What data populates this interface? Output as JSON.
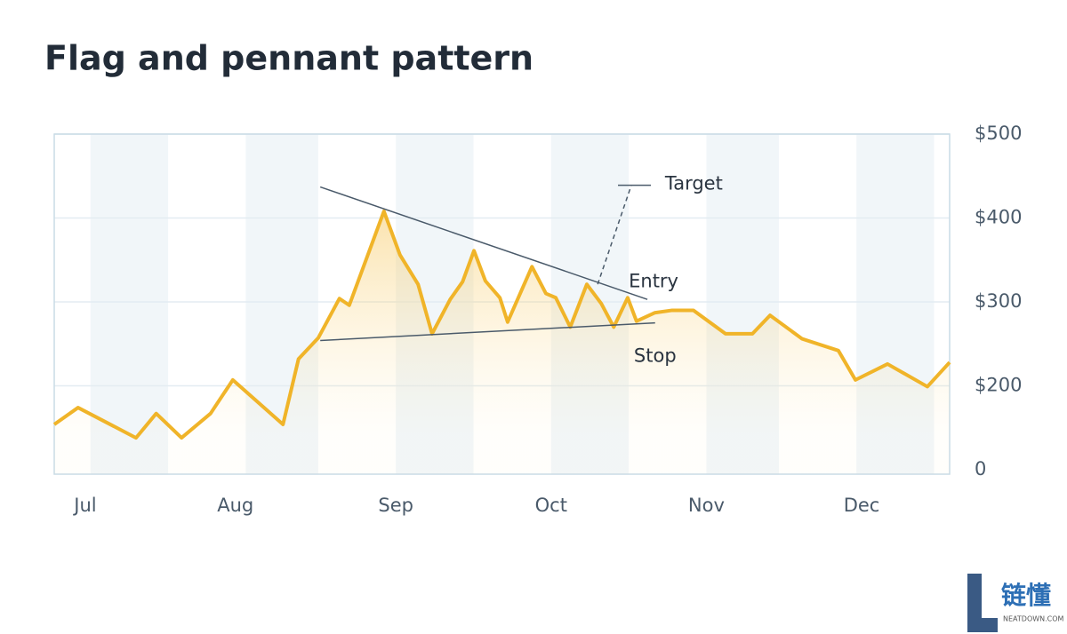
{
  "chart_data": {
    "type": "line",
    "title": "Flag and pennant pattern",
    "x": [
      0,
      4.6,
      15.8,
      19.7,
      24.6,
      30.2,
      34.5,
      44.2,
      47.2,
      51,
      55.1,
      57,
      63.7,
      66.8,
      70.3,
      73,
      76.5,
      78.9,
      81.1,
      83.3,
      86.1,
      87.6,
      92.3,
      95,
      96.9,
      99.7,
      102.9,
      105.7,
      108.1,
      110.8,
      112.5,
      116,
      119.4,
      123.5,
      129.7,
      134.9,
      138.3,
      144.5,
      151.5,
      154.8,
      161,
      168.7,
      173
    ],
    "series": [
      {
        "color": "#f0b429",
        "values": [
          154,
          174,
          138,
          167,
          138,
          167,
          207,
          154,
          232,
          257,
          304,
          296,
          408,
          356,
          321,
          262,
          303,
          324,
          361,
          325,
          305,
          276,
          342,
          310,
          305,
          270,
          321,
          298,
          270,
          305,
          277,
          287,
          290,
          290,
          262,
          262,
          284,
          256,
          242,
          207,
          226,
          199,
          228
        ]
      }
    ],
    "xlim": [
      0,
      173
    ],
    "xticks": [
      {
        "value": 6,
        "label": "Jul"
      },
      {
        "value": 35,
        "label": "Aug"
      },
      {
        "value": 66,
        "label": "Sep"
      },
      {
        "value": 96,
        "label": "Oct"
      },
      {
        "value": 126,
        "label": "Nov"
      },
      {
        "value": 156,
        "label": "Dec"
      }
    ],
    "ylim": [
      100,
      500
    ],
    "yticks": [
      {
        "value": 200,
        "label": "$200"
      },
      {
        "value": 300,
        "label": "$300"
      },
      {
        "value": 400,
        "label": "$400"
      },
      {
        "value": 500,
        "label": "$500"
      }
    ],
    "ybase_label": "0",
    "grid": true,
    "bands": [
      [
        7,
        22
      ],
      [
        37,
        51
      ],
      [
        66,
        81
      ],
      [
        96,
        111
      ],
      [
        126,
        140
      ],
      [
        155,
        170
      ]
    ],
    "trendlines": [
      {
        "x": [
          51.4,
          114.6
        ],
        "y": [
          437,
          303
        ]
      },
      {
        "x": [
          51.4,
          116.1
        ],
        "y": [
          254,
          275
        ]
      },
      {
        "x": [
          105,
          111.5
        ],
        "y": [
          321,
          439
        ],
        "dashed": true
      }
    ],
    "annotations": [
      {
        "text": "Target",
        "x": 118,
        "y": 440
      },
      {
        "text": "Entry",
        "x": 111,
        "y": 324
      },
      {
        "text": "Stop",
        "x": 112,
        "y": 235
      }
    ]
  },
  "watermark": {
    "name": "链懂",
    "site": "NEATDOWN.COM"
  }
}
